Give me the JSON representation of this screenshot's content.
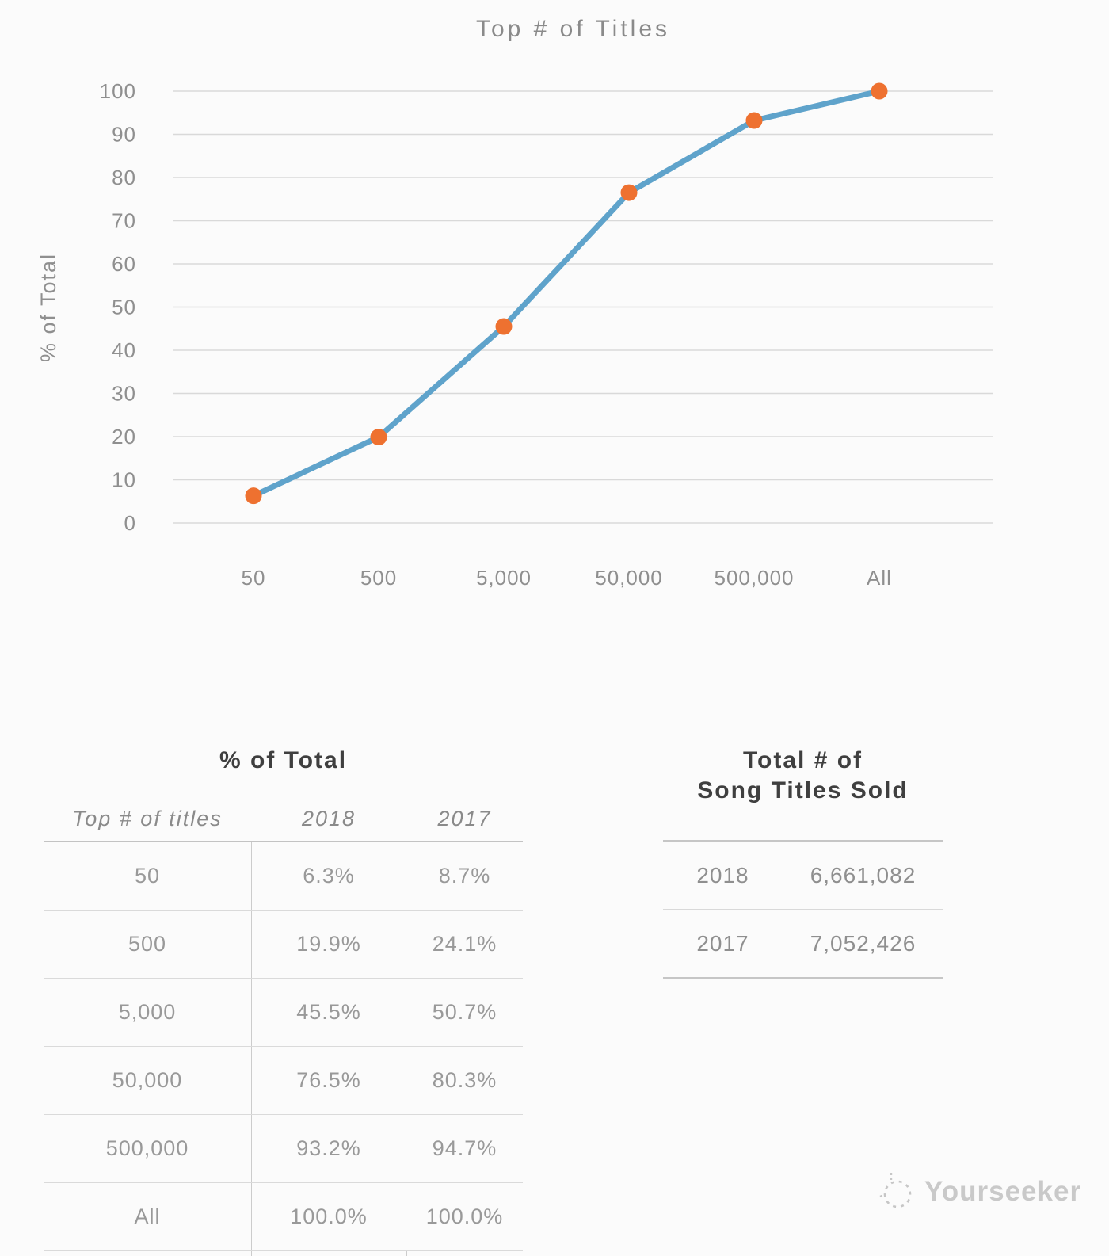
{
  "chart": {
    "title": "Top # of Titles",
    "y_axis_title": "% of Total"
  },
  "chart_data": {
    "type": "line",
    "title": "Top # of Titles",
    "xlabel": "",
    "ylabel": "% of Total",
    "categories": [
      "50",
      "500",
      "5,000",
      "50,000",
      "500,000",
      "All"
    ],
    "series": [
      {
        "name": "2018",
        "values": [
          6.3,
          19.9,
          45.5,
          76.5,
          93.2,
          100.0
        ]
      },
      {
        "name": "2017",
        "values": [
          8.7,
          24.1,
          50.7,
          80.3,
          94.7,
          100.0
        ]
      }
    ],
    "plotted_series": "2018",
    "ylim": [
      0,
      100
    ],
    "ytick_step": 10,
    "grid": true,
    "legend": "none",
    "line_color": "#5FA3CB",
    "marker_color": "#EE7130",
    "gridline_color": "#d9d9d9",
    "axis_text_color": "#8f8f8f"
  },
  "left_table": {
    "title": "% of Total",
    "columns": [
      "Top # of titles",
      "2018",
      "2017"
    ],
    "rows": [
      [
        "50",
        "6.3%",
        "8.7%"
      ],
      [
        "500",
        "19.9%",
        "24.1%"
      ],
      [
        "5,000",
        "45.5%",
        "50.7%"
      ],
      [
        "50,000",
        "76.5%",
        "80.3%"
      ],
      [
        "500,000",
        "93.2%",
        "94.7%"
      ],
      [
        "All",
        "100.0%",
        "100.0%"
      ]
    ]
  },
  "right_table": {
    "title_line1": "Total # of",
    "title_line2": "Song Titles Sold",
    "rows": [
      {
        "year": "2018",
        "value": "6,661,082"
      },
      {
        "year": "2017",
        "value": "7,052,426"
      }
    ]
  },
  "footer": {
    "brand": "Yourseeker"
  }
}
